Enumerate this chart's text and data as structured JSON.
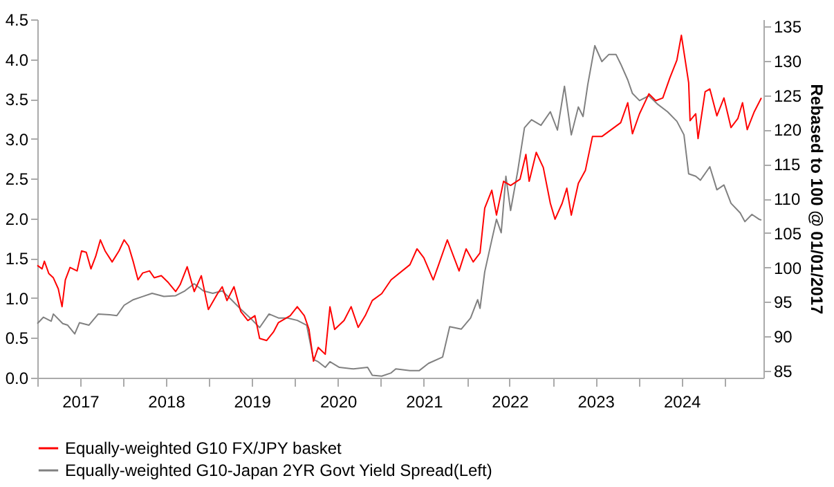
{
  "chart_data": {
    "type": "line",
    "xlim": [
      "2017-01-01",
      "2025-06-15"
    ],
    "xticks": [
      {
        "value": "2017-01-01",
        "label": null
      },
      {
        "value": "2017-07-02",
        "label": "2017"
      },
      {
        "value": "2018-01-01",
        "label": null
      },
      {
        "value": "2018-07-02",
        "label": "2018"
      },
      {
        "value": "2019-01-01",
        "label": null
      },
      {
        "value": "2019-07-02",
        "label": "2019"
      },
      {
        "value": "2020-01-01",
        "label": null
      },
      {
        "value": "2020-07-02",
        "label": "2020"
      },
      {
        "value": "2021-01-01",
        "label": null
      },
      {
        "value": "2021-07-02",
        "label": "2021"
      },
      {
        "value": "2022-01-01",
        "label": null
      },
      {
        "value": "2022-07-02",
        "label": "2022"
      },
      {
        "value": "2023-01-01",
        "label": null
      },
      {
        "value": "2023-07-02",
        "label": "2023"
      },
      {
        "value": "2024-01-01",
        "label": null
      },
      {
        "value": "2024-07-02",
        "label": "2024"
      },
      {
        "value": "2025-01-01",
        "label": null
      }
    ],
    "ylim": [
      0,
      4.5
    ],
    "yticks": [
      {
        "value": 0,
        "label": "0.0"
      },
      {
        "value": 0.5,
        "label": "0.5"
      },
      {
        "value": 1,
        "label": "1.0"
      },
      {
        "value": 1.5,
        "label": "1.5"
      },
      {
        "value": 2,
        "label": "2.0"
      },
      {
        "value": 2.5,
        "label": "2.5"
      },
      {
        "value": 3,
        "label": "3.0"
      },
      {
        "value": 3.5,
        "label": "3.5"
      },
      {
        "value": 4,
        "label": "4.0"
      },
      {
        "value": 4.5,
        "label": "4.5"
      }
    ],
    "y2lim": [
      84,
      136
    ],
    "y2ticks": [
      85,
      90,
      95,
      100,
      105,
      110,
      115,
      120,
      125,
      130,
      135
    ],
    "y2label": "Rebased to 100 @ 01/01/2017",
    "grid": false,
    "legend": "bottom",
    "series": [
      {
        "name": "Equally-weighted G10 FX/JPY basket",
        "color": "#ff0000",
        "axis": "y2",
        "x": [
          "2017-01-01",
          "2017-01-21",
          "2017-01-31",
          "2017-02-19",
          "2017-03-10",
          "2017-03-31",
          "2017-04-16",
          "2017-04-30",
          "2017-05-20",
          "2017-06-19",
          "2017-07-08",
          "2017-07-28",
          "2017-08-17",
          "2017-09-06",
          "2017-09-26",
          "2017-10-16",
          "2017-11-15",
          "2017-12-14",
          "2018-01-05",
          "2018-01-24",
          "2018-02-13",
          "2018-03-05",
          "2018-03-25",
          "2018-04-23",
          "2018-05-13",
          "2018-06-12",
          "2018-07-12",
          "2018-08-12",
          "2018-08-31",
          "2018-09-30",
          "2018-10-30",
          "2018-11-29",
          "2018-12-29",
          "2019-02-06",
          "2019-02-26",
          "2019-03-18",
          "2019-04-17",
          "2019-05-16",
          "2019-06-15",
          "2019-07-15",
          "2019-08-04",
          "2019-09-03",
          "2019-10-03",
          "2019-10-23",
          "2019-12-12",
          "2020-01-11",
          "2020-02-10",
          "2020-03-01",
          "2020-03-20",
          "2020-04-09",
          "2020-05-09",
          "2020-05-29",
          "2020-06-18",
          "2020-07-28",
          "2020-08-27",
          "2020-09-26",
          "2020-10-26",
          "2020-11-25",
          "2021-01-04",
          "2021-02-13",
          "2021-05-04",
          "2021-06-03",
          "2021-07-02",
          "2021-08-11",
          "2021-08-31",
          "2021-10-10",
          "2021-11-29",
          "2021-12-29",
          "2022-01-28",
          "2022-02-26",
          "2022-03-18",
          "2022-04-17",
          "2022-05-07",
          "2022-06-06",
          "2022-07-06",
          "2022-08-15",
          "2022-09-09",
          "2022-09-23",
          "2022-10-23",
          "2022-11-22",
          "2022-12-22",
          "2023-01-11",
          "2023-02-10",
          "2023-03-02",
          "2023-03-21",
          "2023-04-20",
          "2023-05-20",
          "2023-06-19",
          "2023-07-29",
          "2023-09-07",
          "2023-10-17",
          "2023-11-16",
          "2023-12-06",
          "2024-01-05",
          "2024-02-14",
          "2024-03-14",
          "2024-04-13",
          "2024-05-13",
          "2024-06-12",
          "2024-07-01",
          "2024-08-01",
          "2024-08-07",
          "2024-08-31",
          "2024-09-10",
          "2024-10-10",
          "2024-10-30",
          "2024-11-29",
          "2024-12-29",
          "2025-01-28",
          "2025-02-26",
          "2025-03-18",
          "2025-04-07",
          "2025-05-07",
          "2025-06-06"
        ],
        "values": [
          100.3,
          99.8,
          100.9,
          99.1,
          98.5,
          96.9,
          94.3,
          98.2,
          100.0,
          99.5,
          102.4,
          102.2,
          99.8,
          101.6,
          104.0,
          102.4,
          100.8,
          102.4,
          104.0,
          103.1,
          100.8,
          98.2,
          99.2,
          99.5,
          98.5,
          98.8,
          97.8,
          96.5,
          97.5,
          100.1,
          96.5,
          98.8,
          93.9,
          96.2,
          97.2,
          95.2,
          97.2,
          93.6,
          92.3,
          93.0,
          89.7,
          89.4,
          90.7,
          92.0,
          93.0,
          94.3,
          93.0,
          91.0,
          86.4,
          88.4,
          87.4,
          94.3,
          91.0,
          92.3,
          94.3,
          91.3,
          93.0,
          95.2,
          96.2,
          98.2,
          100.4,
          102.7,
          101.4,
          98.2,
          100.1,
          104.0,
          99.5,
          102.7,
          100.8,
          102.1,
          108.6,
          111.2,
          107.6,
          112.5,
          111.9,
          112.8,
          116.4,
          112.5,
          116.7,
          114.5,
          109.3,
          107.0,
          109.3,
          111.5,
          107.6,
          112.2,
          114.1,
          119.0,
          119.0,
          120.0,
          121.0,
          123.9,
          119.4,
          122.3,
          125.2,
          124.2,
          124.6,
          127.5,
          130.1,
          133.7,
          126.8,
          121.3,
          122.3,
          118.7,
          125.5,
          125.9,
          122.0,
          124.6,
          120.3,
          121.6,
          123.9,
          120.0,
          122.6,
          124.6
        ]
      },
      {
        "name": "Equally-weighted G10-Japan 2YR Govt Yield Spread(Left)",
        "color": "#808080",
        "x": [
          "2017-01-01",
          "2017-01-27",
          "2017-03-01",
          "2017-03-10",
          "2017-04-19",
          "2017-05-10",
          "2017-06-09",
          "2017-06-29",
          "2017-08-08",
          "2017-09-17",
          "2017-11-05",
          "2017-12-05",
          "2018-01-05",
          "2018-02-13",
          "2018-03-25",
          "2018-05-04",
          "2018-06-23",
          "2018-08-12",
          "2018-09-20",
          "2018-10-30",
          "2018-12-08",
          "2019-01-17",
          "2019-02-26",
          "2019-04-06",
          "2019-05-16",
          "2019-06-25",
          "2019-08-04",
          "2019-09-13",
          "2019-10-23",
          "2019-12-01",
          "2020-01-11",
          "2020-02-20",
          "2020-03-20",
          "2020-04-09",
          "2020-05-09",
          "2020-05-29",
          "2020-07-08",
          "2020-09-06",
          "2020-11-05",
          "2020-11-25",
          "2021-01-04",
          "2021-02-13",
          "2021-03-05",
          "2021-05-04",
          "2021-06-13",
          "2021-07-22",
          "2021-09-20",
          "2021-10-20",
          "2021-12-08",
          "2022-01-17",
          "2022-02-16",
          "2022-02-26",
          "2022-03-18",
          "2022-04-17",
          "2022-05-07",
          "2022-05-27",
          "2022-06-16",
          "2022-07-06",
          "2022-08-05",
          "2022-09-03",
          "2022-10-03",
          "2022-11-12",
          "2022-12-22",
          "2023-01-21",
          "2023-02-20",
          "2023-03-21",
          "2023-04-20",
          "2023-05-10",
          "2023-05-30",
          "2023-06-29",
          "2023-07-29",
          "2023-08-28",
          "2023-09-27",
          "2023-10-17",
          "2023-11-16",
          "2023-12-06",
          "2024-01-05",
          "2024-02-14",
          "2024-03-24",
          "2024-05-03",
          "2024-06-12",
          "2024-07-12",
          "2024-08-01",
          "2024-08-31",
          "2024-09-20",
          "2024-10-30",
          "2024-11-29",
          "2024-12-29",
          "2025-01-28",
          "2025-03-08",
          "2025-03-28",
          "2025-04-27",
          "2025-05-27",
          "2025-06-06"
        ],
        "values": [
          0.68,
          0.76,
          0.71,
          0.8,
          0.68,
          0.66,
          0.55,
          0.69,
          0.66,
          0.8,
          0.79,
          0.78,
          0.91,
          0.98,
          1.02,
          1.06,
          1.02,
          1.03,
          1.09,
          1.18,
          1.09,
          1.06,
          1.09,
          0.98,
          0.86,
          0.75,
          0.63,
          0.8,
          0.75,
          0.75,
          0.72,
          0.66,
          0.23,
          0.2,
          0.13,
          0.2,
          0.13,
          0.11,
          0.13,
          0.03,
          0.02,
          0.06,
          0.11,
          0.09,
          0.09,
          0.18,
          0.26,
          0.64,
          0.61,
          0.75,
          0.98,
          0.87,
          1.33,
          1.73,
          1.99,
          1.82,
          2.53,
          2.1,
          2.59,
          3.14,
          3.24,
          3.17,
          3.34,
          3.11,
          3.66,
          3.05,
          3.4,
          3.28,
          3.68,
          4.17,
          3.97,
          4.06,
          4.06,
          3.94,
          3.74,
          3.57,
          3.48,
          3.54,
          3.43,
          3.34,
          3.22,
          3.05,
          2.56,
          2.53,
          2.48,
          2.65,
          2.36,
          2.42,
          2.19,
          2.07,
          1.96,
          2.05,
          1.99,
          1.98
        ]
      }
    ]
  }
}
